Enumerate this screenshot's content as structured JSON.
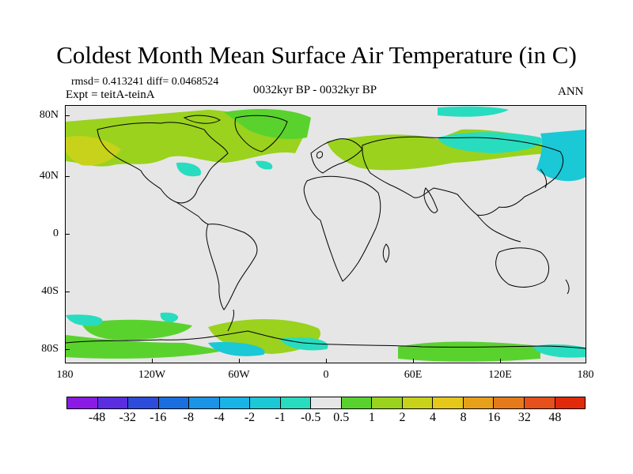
{
  "title": "Coldest Month Mean Surface Air Temperature (in C)",
  "stats": "rmsd= 0.413241 diff= 0.0468524",
  "experiment": "Expt = teitA-teinA",
  "period": "0032kyr BP - 0032kyr BP",
  "season": "ANN",
  "lat_labels": [
    "80N",
    "40N",
    "0",
    "40S",
    "80S"
  ],
  "lon_labels": [
    "180",
    "120W",
    "60W",
    "0",
    "60E",
    "120E",
    "180"
  ],
  "colorbar": {
    "labels": [
      "-48",
      "-32",
      "-16",
      "-8",
      "-4",
      "-2",
      "-1",
      "-0.5",
      "0.5",
      "1",
      "2",
      "4",
      "8",
      "16",
      "32",
      "48"
    ],
    "colors": [
      "#8b1ae6",
      "#5a2ee0",
      "#2e4cdc",
      "#1a6fe0",
      "#1a94e6",
      "#18b4e8",
      "#1ac8d6",
      "#28dcc0",
      "#e6e6e6",
      "#5ad22e",
      "#9ad21e",
      "#c8d21a",
      "#e6c81a",
      "#e6a01a",
      "#e67a1a",
      "#e6501a",
      "#e02a0a"
    ]
  }
}
